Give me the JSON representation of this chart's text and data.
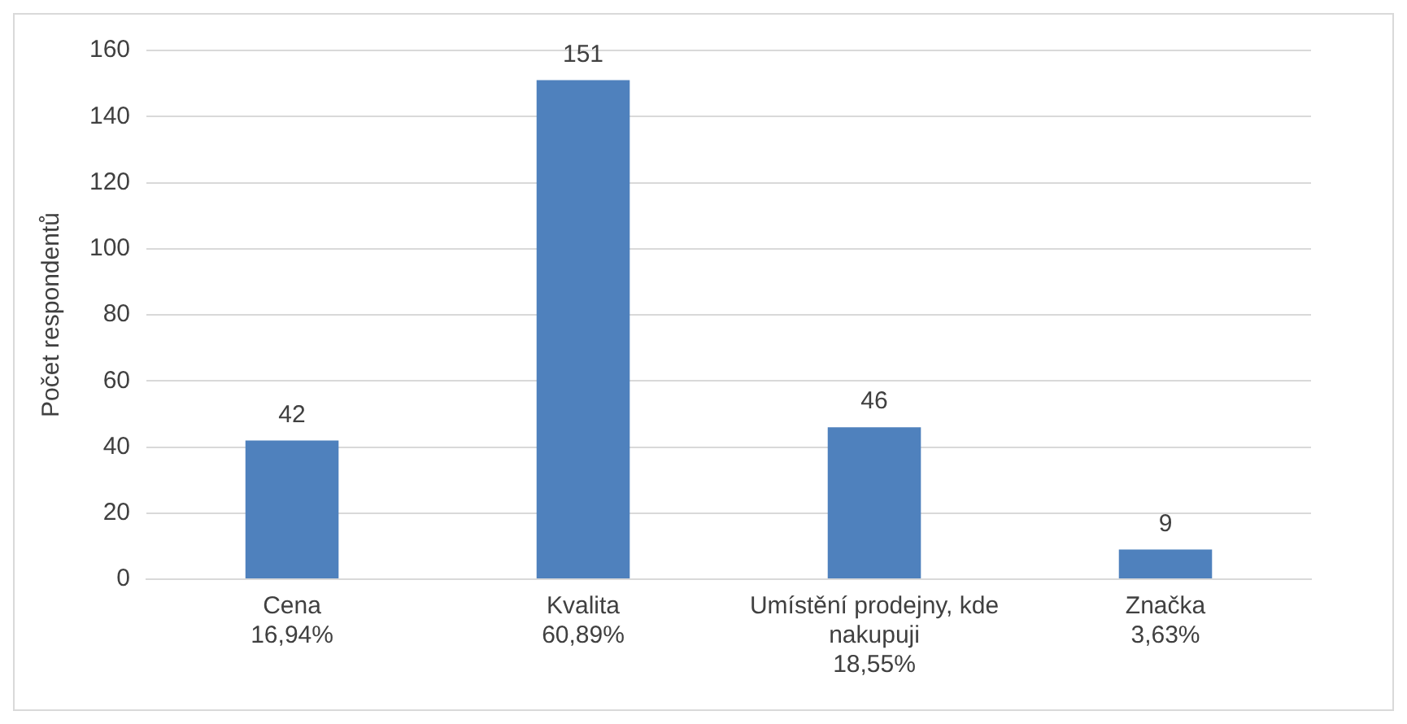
{
  "chart_data": {
    "type": "bar",
    "ylabel": "Počet respondentů",
    "categories": [
      "Cena\n16,94%",
      "Kvalita\n60,89%",
      "Umístění prodejny, kde\nnakupuji\n18,55%",
      "Značka\n3,63%"
    ],
    "values": [
      42,
      151,
      46,
      9
    ],
    "color": "#4f81bd",
    "ylim": [
      0,
      160
    ],
    "yticks": [
      0,
      20,
      40,
      60,
      80,
      100,
      120,
      140,
      160
    ],
    "grid": "y",
    "data_labels": true,
    "legend": false
  }
}
